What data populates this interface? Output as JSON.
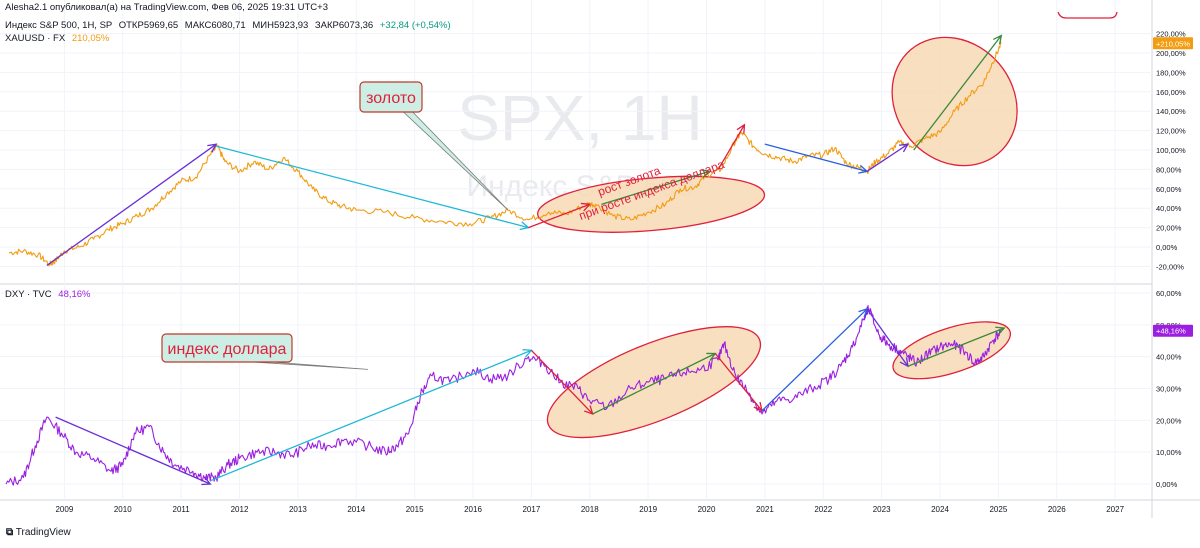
{
  "header": {
    "publisher_line": "Alesha2.1 опубликовал(а) на TradingView.com, Фев 06, 2025 19:31 UTC+3",
    "symbol_line": "Индекс S&P 500, 1Н, SP",
    "ohlc": [
      {
        "label": "ОТКР",
        "value": "5969,65"
      },
      {
        "label": "МАКС",
        "value": "6080,71"
      },
      {
        "label": "МИН",
        "value": "5923,93"
      },
      {
        "label": "ЗАКР",
        "value": "6073,36"
      }
    ],
    "change": "+32,84 (+0,54%)",
    "overlay_label": "XAUUSD · FX",
    "overlay_value": "210,05%"
  },
  "watermark": {
    "title": "SPX, 1H",
    "subtitle": "Индекс S&P 500"
  },
  "footer": {
    "logo_text": "TradingView"
  },
  "colors": {
    "gold": "#f39c12",
    "dxy": "#9b1fe0",
    "purple_trend": "#6a2fd6",
    "cyan_trend": "#1eb8d6",
    "red_trend": "#e0203c",
    "green_trend": "#3a8a3a",
    "blue_trend": "#2860e0",
    "ellipse_fill": "#f7d9b4",
    "ellipse_stroke": "#e0203c",
    "callout_fill": "#cdeee4",
    "callout_stroke": "#c0392b",
    "annotation_red": "#e0203c"
  },
  "annotations": {
    "gold_callout": "золото",
    "dxy_callout": "индекс доллара",
    "rotated_line1": "рост золота",
    "rotated_line2": "при росте индекса доллара"
  },
  "chart_data": [
    {
      "type": "line",
      "title": "XAUUSD · FX",
      "y_unit": "%",
      "ylim": [
        -25,
        225
      ],
      "y_ticks": [
        "220,00%",
        "200,00%",
        "180,00%",
        "160,00%",
        "140,00%",
        "120,00%",
        "100,00%",
        "80,00%",
        "60,00%",
        "40,00%",
        "20,00%",
        "0,00%",
        "-20,00%"
      ],
      "y_tick_values": [
        220,
        200,
        180,
        160,
        140,
        120,
        100,
        80,
        60,
        40,
        20,
        0,
        -20
      ],
      "last_value_label": "+210,05%",
      "last_value": 210.05,
      "series": [
        {
          "name": "XAUUSD",
          "x": [
            2008.05,
            2008.3,
            2008.55,
            2008.75,
            2008.85,
            2009.0,
            2009.25,
            2009.5,
            2009.75,
            2010.0,
            2010.25,
            2010.5,
            2010.75,
            2011.0,
            2011.25,
            2011.5,
            2011.62,
            2011.75,
            2012.0,
            2012.25,
            2012.5,
            2012.75,
            2013.0,
            2013.25,
            2013.5,
            2013.75,
            2014.0,
            2014.5,
            2015.0,
            2015.5,
            2015.95,
            2016.3,
            2016.6,
            2016.95,
            2017.3,
            2017.6,
            2017.95,
            2018.1,
            2018.4,
            2018.7,
            2019.0,
            2019.3,
            2019.55,
            2019.8,
            2020.0,
            2020.25,
            2020.5,
            2020.6,
            2020.8,
            2021.0,
            2021.25,
            2021.5,
            2021.75,
            2022.0,
            2022.2,
            2022.4,
            2022.6,
            2022.75,
            2022.9,
            2023.1,
            2023.3,
            2023.5,
            2023.75,
            2024.0,
            2024.25,
            2024.5,
            2024.75,
            2024.9,
            2025.05
          ],
          "y": [
            -6,
            -4,
            -8,
            -18,
            -14,
            -4,
            0,
            8,
            18,
            24,
            32,
            40,
            55,
            68,
            72,
            95,
            104,
            88,
            78,
            88,
            80,
            92,
            78,
            60,
            48,
            42,
            38,
            36,
            30,
            26,
            24,
            30,
            38,
            28,
            36,
            34,
            44,
            44,
            32,
            28,
            36,
            44,
            60,
            62,
            74,
            80,
            110,
            118,
            104,
            96,
            92,
            88,
            94,
            95,
            102,
            86,
            82,
            78,
            88,
            96,
            108,
            104,
            112,
            118,
            140,
            156,
            170,
            190,
            210.05
          ]
        }
      ],
      "trendlines": [
        {
          "color_key": "purple_trend",
          "from": [
            2008.7,
            -19
          ],
          "to": [
            2011.6,
            106
          ]
        },
        {
          "color_key": "cyan_trend",
          "from": [
            2011.6,
            104
          ],
          "to": [
            2016.95,
            20
          ]
        },
        {
          "color_key": "red_trend",
          "from": [
            2016.95,
            20
          ],
          "to": [
            2018.0,
            44
          ]
        },
        {
          "color_key": "green_trend",
          "from": [
            2018.2,
            44
          ],
          "to": [
            2020.05,
            78
          ]
        },
        {
          "color_key": "red_trend",
          "from": [
            2020.2,
            80
          ],
          "to": [
            2020.65,
            126
          ]
        },
        {
          "color_key": "blue_trend",
          "from": [
            2021.0,
            106
          ],
          "to": [
            2022.75,
            78
          ]
        },
        {
          "color_key": "purple_trend",
          "from": [
            2022.75,
            78
          ],
          "to": [
            2023.45,
            106
          ]
        },
        {
          "color_key": "green_trend",
          "from": [
            2023.55,
            100
          ],
          "to": [
            2025.05,
            218
          ]
        }
      ],
      "ellipses": [
        {
          "center": [
            2019.05,
            44
          ],
          "rx_years": 1.95,
          "ry_pct": 27,
          "angle": -5
        },
        {
          "center": [
            2024.25,
            150
          ],
          "rx_years": 1.0,
          "ry_pct": 70,
          "angle": -40
        }
      ]
    },
    {
      "type": "line",
      "title": "DXY · TVC",
      "y_unit": "%",
      "ylim": [
        -3,
        61
      ],
      "y_ticks": [
        "60,00%",
        "50,00%",
        "40,00%",
        "30,00%",
        "20,00%",
        "10,00%",
        "0,00%"
      ],
      "y_tick_values": [
        60,
        50,
        40,
        30,
        20,
        10,
        0
      ],
      "last_value_label": "+48,16%",
      "last_value": 48.16,
      "legend_value": "48,16%",
      "series": [
        {
          "name": "DXY",
          "x": [
            2008.0,
            2008.3,
            2008.5,
            2008.7,
            2008.95,
            2009.2,
            2009.5,
            2009.8,
            2010.0,
            2010.2,
            2010.45,
            2010.7,
            2010.9,
            2011.2,
            2011.4,
            2011.6,
            2011.8,
            2012.0,
            2012.3,
            2012.6,
            2012.9,
            2013.2,
            2013.5,
            2013.8,
            2014.2,
            2014.5,
            2014.7,
            2014.9,
            2015.1,
            2015.3,
            2015.6,
            2016.0,
            2016.3,
            2016.6,
            2016.95,
            2017.2,
            2017.5,
            2017.8,
            2018.0,
            2018.3,
            2018.7,
            2019.0,
            2019.3,
            2019.6,
            2019.9,
            2020.2,
            2020.3,
            2020.5,
            2020.75,
            2020.95,
            2021.2,
            2021.5,
            2021.8,
            2022.1,
            2022.3,
            2022.5,
            2022.7,
            2022.78,
            2022.95,
            2023.1,
            2023.3,
            2023.45,
            2023.6,
            2023.8,
            2024.0,
            2024.2,
            2024.4,
            2024.6,
            2024.75,
            2024.9,
            2025.05
          ],
          "y": [
            0,
            2,
            12,
            21,
            16,
            10,
            8,
            4,
            6,
            16,
            18,
            10,
            6,
            4,
            2,
            2,
            6,
            8,
            10,
            10,
            9,
            12,
            12,
            14,
            12,
            10,
            12,
            16,
            28,
            34,
            32,
            36,
            33,
            34,
            40,
            38,
            32,
            30,
            26,
            24,
            30,
            32,
            33,
            35,
            36,
            39,
            44,
            34,
            28,
            22,
            26,
            27,
            30,
            33,
            37,
            43,
            52,
            55,
            47,
            44,
            42,
            40,
            38,
            41,
            43,
            44,
            42,
            38,
            40,
            45,
            48.16
          ]
        }
      ],
      "trendlines": [
        {
          "color_key": "purple_trend",
          "from": [
            2008.85,
            21
          ],
          "to": [
            2011.5,
            0
          ]
        },
        {
          "color_key": "cyan_trend",
          "from": [
            2011.5,
            1
          ],
          "to": [
            2017.0,
            42
          ]
        },
        {
          "color_key": "red_trend",
          "from": [
            2017.0,
            42
          ],
          "to": [
            2018.05,
            22
          ]
        },
        {
          "color_key": "green_trend",
          "from": [
            2018.05,
            22
          ],
          "to": [
            2020.15,
            41
          ]
        },
        {
          "color_key": "red_trend",
          "from": [
            2020.15,
            41
          ],
          "to": [
            2020.95,
            23
          ]
        },
        {
          "color_key": "blue_trend",
          "from": [
            2020.95,
            23
          ],
          "to": [
            2022.75,
            55
          ]
        },
        {
          "color_key": "purple_trend",
          "from": [
            2022.75,
            55
          ],
          "to": [
            2023.45,
            37
          ]
        },
        {
          "color_key": "green_trend",
          "from": [
            2023.45,
            37
          ],
          "to": [
            2025.1,
            49
          ]
        }
      ],
      "ellipses": [
        {
          "center": [
            2019.1,
            32
          ],
          "rx_years": 1.95,
          "ry_pct": 12,
          "angle": -22
        },
        {
          "center": [
            2024.2,
            42
          ],
          "rx_years": 1.05,
          "ry_pct": 7,
          "angle": -18
        }
      ]
    }
  ],
  "x_axis": {
    "ticks": [
      "2009",
      "2010",
      "2011",
      "2012",
      "2013",
      "2014",
      "2015",
      "2016",
      "2017",
      "2018",
      "2019",
      "2020",
      "2021",
      "2022",
      "2023",
      "2024",
      "2025",
      "2026",
      "2027"
    ],
    "tick_values": [
      2009,
      2010,
      2011,
      2012,
      2013,
      2014,
      2015,
      2016,
      2017,
      2018,
      2019,
      2020,
      2021,
      2022,
      2023,
      2024,
      2025,
      2026,
      2027
    ],
    "range": [
      2008.0,
      2027.7
    ]
  }
}
